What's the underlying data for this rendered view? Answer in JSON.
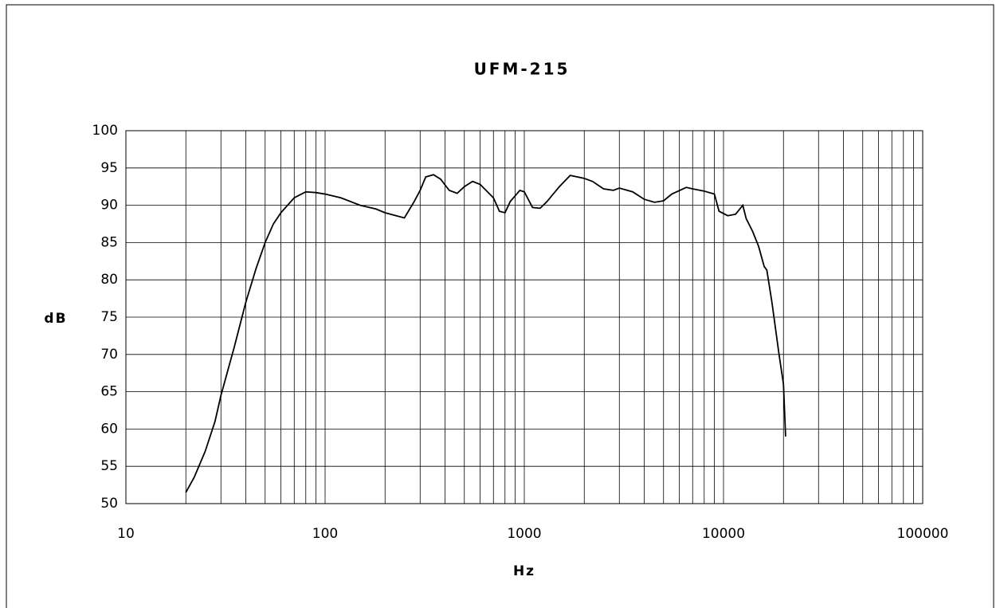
{
  "chart_data": {
    "type": "line",
    "title": "UFM-215",
    "x_label": "Hz",
    "y_label": "dB",
    "log_x": true,
    "grid": true,
    "xlim": [
      10,
      100000
    ],
    "xticks": [
      10,
      100,
      1000,
      10000,
      100000
    ],
    "ylim": [
      50,
      100
    ],
    "yticks": [
      50,
      55,
      60,
      65,
      70,
      75,
      80,
      85,
      90,
      95,
      100
    ],
    "x": [
      20,
      22,
      25,
      28,
      30,
      35,
      40,
      45,
      50,
      55,
      60,
      70,
      80,
      90,
      100,
      120,
      150,
      180,
      200,
      250,
      280,
      300,
      320,
      350,
      380,
      420,
      460,
      500,
      550,
      600,
      700,
      750,
      800,
      850,
      950,
      1000,
      1100,
      1200,
      1300,
      1500,
      1700,
      2000,
      2200,
      2500,
      2800,
      3000,
      3500,
      4000,
      4500,
      5000,
      5500,
      6500,
      7000,
      8000,
      9000,
      9500,
      10500,
      11500,
      12500,
      13000,
      14000,
      15000,
      16000,
      16500,
      17500,
      19000,
      20000,
      20500
    ],
    "series": [
      {
        "name": "UFM-215",
        "color": "#000000",
        "values": [
          51.5,
          53.5,
          57,
          61,
          64.5,
          71,
          77,
          81.5,
          85,
          87.5,
          89,
          91,
          91.8,
          91.7,
          91.5,
          91,
          90,
          89.5,
          89,
          88.3,
          90.5,
          92,
          93.8,
          94.1,
          93.5,
          92,
          91.6,
          92.5,
          93.2,
          92.8,
          91,
          89.2,
          89,
          90.5,
          92,
          91.8,
          89.7,
          89.6,
          90.5,
          92.5,
          94,
          93.6,
          93.2,
          92.2,
          92,
          92.3,
          91.8,
          90.8,
          90.4,
          90.6,
          91.5,
          92.4,
          92.2,
          91.9,
          91.5,
          89.2,
          88.6,
          88.8,
          90,
          88.2,
          86.5,
          84.5,
          81.8,
          81.3,
          77,
          70,
          66,
          59
        ]
      }
    ]
  }
}
